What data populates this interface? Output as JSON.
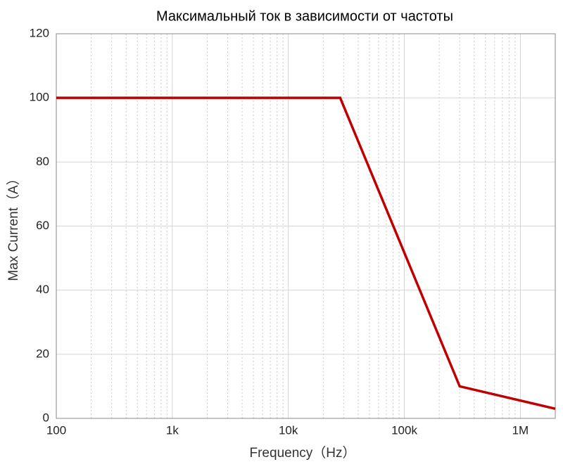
{
  "chart_data": {
    "type": "line",
    "title": "Максимальный ток в зависимости от частоты",
    "x_label": "Frequency（Hz）",
    "y_label": "Max Current（A）",
    "x_scale": "log",
    "x": [
      100,
      28000,
      300000,
      2000000
    ],
    "series": [
      {
        "name": "Max Current",
        "color": "#c00000",
        "values": [
          100,
          100,
          10,
          3
        ]
      }
    ],
    "xlim": [
      100,
      2000000
    ],
    "xticks": [
      100,
      {
        "value": 1000,
        "label": "1k"
      },
      {
        "value": 10000,
        "label": "10k"
      },
      {
        "value": 100000,
        "label": "100k"
      },
      {
        "value": 1000000,
        "label": "1M"
      }
    ],
    "ylim": [
      0,
      120
    ],
    "yticks": [
      0,
      20,
      40,
      60,
      80,
      100,
      120
    ],
    "grid": true,
    "minor_grid": true
  }
}
